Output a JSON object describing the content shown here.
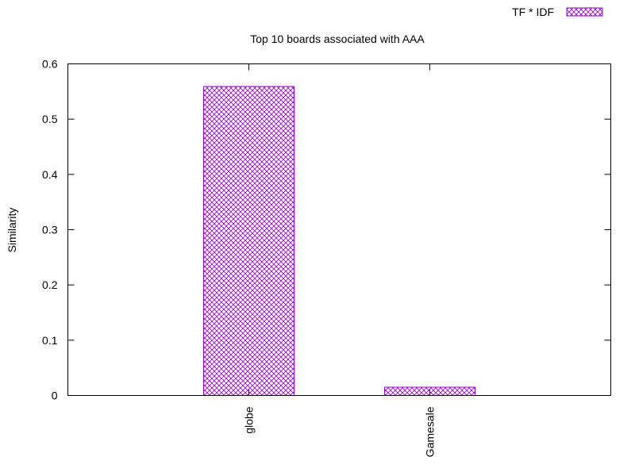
{
  "chart_data": {
    "type": "bar",
    "title": "Top 10 boards associated with AAA",
    "xlabel": "",
    "ylabel": "Similarity",
    "categories": [
      "globe",
      "Gamesale"
    ],
    "series": [
      {
        "name": "TF * IDF",
        "values": [
          0.559,
          0.015
        ],
        "color": "#9400d3"
      }
    ],
    "ylim": [
      0,
      0.6
    ],
    "yticks": [
      0,
      0.1,
      0.2,
      0.3,
      0.4,
      0.5,
      0.6
    ],
    "ytick_labels": [
      "0",
      "0.1",
      "0.2",
      "0.3",
      "0.4",
      "0.5",
      "0.6"
    ],
    "grid": false,
    "legend_position": "top-right",
    "bar_fill": "crosshatch"
  }
}
